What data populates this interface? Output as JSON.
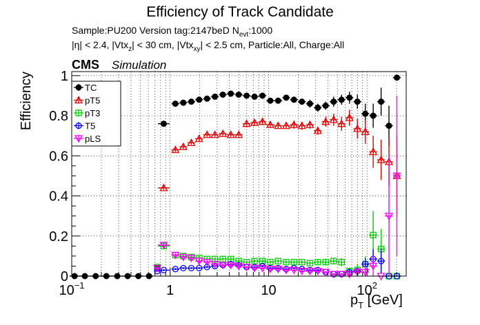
{
  "chart_data": {
    "type": "scatter",
    "title": "Efficiency of Track Candidate",
    "subtitle_1": {
      "main": "Sample:PU200   Version tag:2147beD  N",
      "sub": "evt",
      "tail": ":1000"
    },
    "subtitle_2": [
      {
        "text": "|η| < 2.4, |Vtx",
        "sub": "z"
      },
      {
        "text": "| < 30 cm, |Vtx",
        "sub": "xy"
      },
      {
        "text": "| < 2.5 cm, Particle:All, Charge:All",
        "sub": ""
      }
    ],
    "cms_label": "CMS",
    "cms_extra": "Simulation",
    "xlabel": {
      "main": "p",
      "sub": "T",
      "tail": " [GeV]"
    },
    "ylabel": "Efficiency",
    "xscale": "log",
    "xlim": [
      0.1,
      250
    ],
    "ylim": [
      0,
      1.02
    ],
    "x_ticks": [
      {
        "value": 0.1,
        "label": "10",
        "sup": "−1"
      },
      {
        "value": 1,
        "label": "1",
        "sup": ""
      },
      {
        "value": 10,
        "label": "10",
        "sup": ""
      },
      {
        "value": 100,
        "label": "10",
        "sup": "2"
      }
    ],
    "y_ticks": [
      {
        "value": 0,
        "label": "0"
      },
      {
        "value": 0.2,
        "label": "0.2"
      },
      {
        "value": 0.4,
        "label": "0.4"
      },
      {
        "value": 0.6,
        "label": "0.6"
      },
      {
        "value": 0.8,
        "label": "0.8"
      },
      {
        "value": 1,
        "label": "1"
      }
    ],
    "grid": true,
    "legend_position": "top-left",
    "series": [
      {
        "name": "TC",
        "color": "#000000",
        "marker": "filled-circle",
        "points": [
          [
            0.107,
            0,
            0
          ],
          [
            0.136,
            0,
            0
          ],
          [
            0.175,
            0,
            0
          ],
          [
            0.225,
            0,
            0
          ],
          [
            0.29,
            0,
            0
          ],
          [
            0.37,
            0,
            0
          ],
          [
            0.475,
            0,
            0
          ],
          [
            0.61,
            0,
            0
          ],
          [
            0.74,
            0.04,
            0.01
          ],
          [
            0.86,
            0.76,
            0.01
          ],
          [
            1.13,
            0.86,
            0.01
          ],
          [
            1.36,
            0.865,
            0.01
          ],
          [
            1.64,
            0.87,
            0.01
          ],
          [
            1.97,
            0.88,
            0.01
          ],
          [
            2.37,
            0.885,
            0.01
          ],
          [
            2.85,
            0.895,
            0.01
          ],
          [
            3.43,
            0.905,
            0.01
          ],
          [
            4.13,
            0.91,
            0.01
          ],
          [
            4.97,
            0.905,
            0.01
          ],
          [
            5.98,
            0.9,
            0.01
          ],
          [
            7.2,
            0.895,
            0.01
          ],
          [
            8.66,
            0.9,
            0.015
          ],
          [
            10.4,
            0.875,
            0.015
          ],
          [
            12.5,
            0.875,
            0.015
          ],
          [
            15.1,
            0.89,
            0.015
          ],
          [
            18.1,
            0.88,
            0.015
          ],
          [
            21.8,
            0.87,
            0.015
          ],
          [
            26.3,
            0.86,
            0.02
          ],
          [
            31.6,
            0.84,
            0.02
          ],
          [
            38,
            0.85,
            0.02
          ],
          [
            45.8,
            0.87,
            0.025
          ],
          [
            55.1,
            0.88,
            0.025
          ],
          [
            66.3,
            0.89,
            0.03
          ],
          [
            79.8,
            0.87,
            0.035
          ],
          [
            96,
            0.81,
            0.05
          ],
          [
            115.5,
            0.8,
            0.06
          ],
          [
            139,
            0.87,
            0.07
          ],
          [
            167,
            0.75,
            0.1
          ],
          [
            201,
            0.99,
            0.015
          ]
        ]
      },
      {
        "name": "pT5",
        "color": "#e00000",
        "marker": "open-triangle",
        "points": [
          [
            0.86,
            0.44,
            0.01
          ],
          [
            1.13,
            0.63,
            0.01
          ],
          [
            1.36,
            0.645,
            0.01
          ],
          [
            1.64,
            0.665,
            0.01
          ],
          [
            1.97,
            0.685,
            0.01
          ],
          [
            2.37,
            0.705,
            0.01
          ],
          [
            2.85,
            0.705,
            0.01
          ],
          [
            3.43,
            0.71,
            0.01
          ],
          [
            4.13,
            0.705,
            0.01
          ],
          [
            4.97,
            0.705,
            0.01
          ],
          [
            5.98,
            0.76,
            0.015
          ],
          [
            7.2,
            0.765,
            0.015
          ],
          [
            8.66,
            0.77,
            0.015
          ],
          [
            10.4,
            0.755,
            0.015
          ],
          [
            12.5,
            0.75,
            0.015
          ],
          [
            15.1,
            0.75,
            0.015
          ],
          [
            18.1,
            0.755,
            0.02
          ],
          [
            21.8,
            0.75,
            0.02
          ],
          [
            26.3,
            0.755,
            0.02
          ],
          [
            31.6,
            0.725,
            0.02
          ],
          [
            38,
            0.77,
            0.025
          ],
          [
            45.8,
            0.78,
            0.03
          ],
          [
            55.1,
            0.76,
            0.035
          ],
          [
            66.3,
            0.79,
            0.04
          ],
          [
            79.8,
            0.735,
            0.05
          ],
          [
            96,
            0.72,
            0.06
          ],
          [
            115.5,
            0.62,
            0.08
          ],
          [
            139,
            0.58,
            0.1
          ],
          [
            167,
            0.57,
            0.12
          ],
          [
            201,
            0.5,
            0.2
          ]
        ]
      },
      {
        "name": "pT3",
        "color": "#00d000",
        "marker": "open-square",
        "points": [
          [
            0.74,
            0.045,
            0.01
          ],
          [
            0.86,
            0.15,
            0.01
          ],
          [
            1.13,
            0.105,
            0.01
          ],
          [
            1.36,
            0.1,
            0.01
          ],
          [
            1.64,
            0.095,
            0.01
          ],
          [
            1.97,
            0.09,
            0.01
          ],
          [
            2.37,
            0.085,
            0.01
          ],
          [
            2.85,
            0.085,
            0.01
          ],
          [
            3.43,
            0.085,
            0.01
          ],
          [
            4.13,
            0.085,
            0.01
          ],
          [
            4.97,
            0.075,
            0.01
          ],
          [
            5.98,
            0.07,
            0.01
          ],
          [
            7.2,
            0.075,
            0.01
          ],
          [
            8.66,
            0.075,
            0.01
          ],
          [
            10.4,
            0.07,
            0.01
          ],
          [
            12.5,
            0.075,
            0.01
          ],
          [
            15.1,
            0.07,
            0.01
          ],
          [
            18.1,
            0.07,
            0.01
          ],
          [
            21.8,
            0.07,
            0.01
          ],
          [
            26.3,
            0.065,
            0.01
          ],
          [
            31.6,
            0.07,
            0.015
          ],
          [
            38,
            0.07,
            0.015
          ],
          [
            45.8,
            0.075,
            0.015
          ],
          [
            55.1,
            0.07,
            0.02
          ],
          [
            66.3,
            0.025,
            0.015
          ],
          [
            79.8,
            0.03,
            0.03
          ],
          [
            96,
            0.06,
            0.04
          ],
          [
            115.5,
            0.205,
            0.12
          ],
          [
            139,
            0.135,
            0.1
          ],
          [
            167,
            0.0,
            0.0
          ],
          [
            201,
            0.0,
            0.0
          ]
        ]
      },
      {
        "name": "T5",
        "color": "#0000ff",
        "marker": "open-circle",
        "points": [
          [
            0.74,
            0.025,
            0.005
          ],
          [
            0.86,
            0.03,
            0.005
          ],
          [
            1.13,
            0.035,
            0.005
          ],
          [
            1.36,
            0.04,
            0.005
          ],
          [
            1.64,
            0.04,
            0.005
          ],
          [
            1.97,
            0.04,
            0.005
          ],
          [
            2.37,
            0.045,
            0.005
          ],
          [
            2.85,
            0.05,
            0.005
          ],
          [
            3.43,
            0.055,
            0.005
          ],
          [
            4.13,
            0.06,
            0.005
          ],
          [
            4.97,
            0.055,
            0.005
          ],
          [
            5.98,
            0.045,
            0.005
          ],
          [
            7.2,
            0.045,
            0.005
          ],
          [
            8.66,
            0.05,
            0.005
          ],
          [
            10.4,
            0.04,
            0.005
          ],
          [
            12.5,
            0.04,
            0.005
          ],
          [
            15.1,
            0.035,
            0.005
          ],
          [
            18.1,
            0.04,
            0.005
          ],
          [
            21.8,
            0.035,
            0.005
          ],
          [
            26.3,
            0.03,
            0.005
          ],
          [
            31.6,
            0.03,
            0.005
          ],
          [
            38,
            0.02,
            0.005
          ],
          [
            45.8,
            0.01,
            0.005
          ],
          [
            55.1,
            0.01,
            0.005
          ],
          [
            66.3,
            0.02,
            0.01
          ],
          [
            79.8,
            0.025,
            0.015
          ],
          [
            96,
            0.06,
            0.03
          ],
          [
            115.5,
            0.085,
            0.05
          ],
          [
            139,
            0.075,
            0.06
          ],
          [
            167,
            0.0,
            0.0
          ],
          [
            201,
            0.0,
            0.0
          ]
        ]
      },
      {
        "name": "pLS",
        "color": "#ff00ff",
        "marker": "open-triangle-down",
        "points": [
          [
            0.74,
            0.04,
            0.01
          ],
          [
            0.86,
            0.155,
            0.01
          ],
          [
            1.13,
            0.105,
            0.01
          ],
          [
            1.36,
            0.095,
            0.01
          ],
          [
            1.64,
            0.09,
            0.01
          ],
          [
            1.97,
            0.075,
            0.01
          ],
          [
            2.37,
            0.07,
            0.01
          ],
          [
            2.85,
            0.06,
            0.01
          ],
          [
            3.43,
            0.055,
            0.01
          ],
          [
            4.13,
            0.055,
            0.01
          ],
          [
            4.97,
            0.05,
            0.01
          ],
          [
            5.98,
            0.045,
            0.005
          ],
          [
            7.2,
            0.04,
            0.005
          ],
          [
            8.66,
            0.04,
            0.005
          ],
          [
            10.4,
            0.035,
            0.005
          ],
          [
            12.5,
            0.035,
            0.005
          ],
          [
            15.1,
            0.03,
            0.005
          ],
          [
            18.1,
            0.03,
            0.005
          ],
          [
            21.8,
            0.025,
            0.005
          ],
          [
            26.3,
            0.025,
            0.005
          ],
          [
            31.6,
            0.025,
            0.005
          ],
          [
            38,
            0.02,
            0.005
          ],
          [
            45.8,
            0.01,
            0.005
          ],
          [
            55.1,
            0.01,
            0.005
          ],
          [
            66.3,
            0.01,
            0.01
          ],
          [
            79.8,
            0.02,
            0.02
          ],
          [
            96,
            0.02,
            0.03
          ],
          [
            115.5,
            0.05,
            0.05
          ],
          [
            139,
            0.0,
            0.0
          ],
          [
            167,
            0.3,
            0.3
          ],
          [
            201,
            0.5,
            0.4
          ]
        ]
      }
    ]
  }
}
